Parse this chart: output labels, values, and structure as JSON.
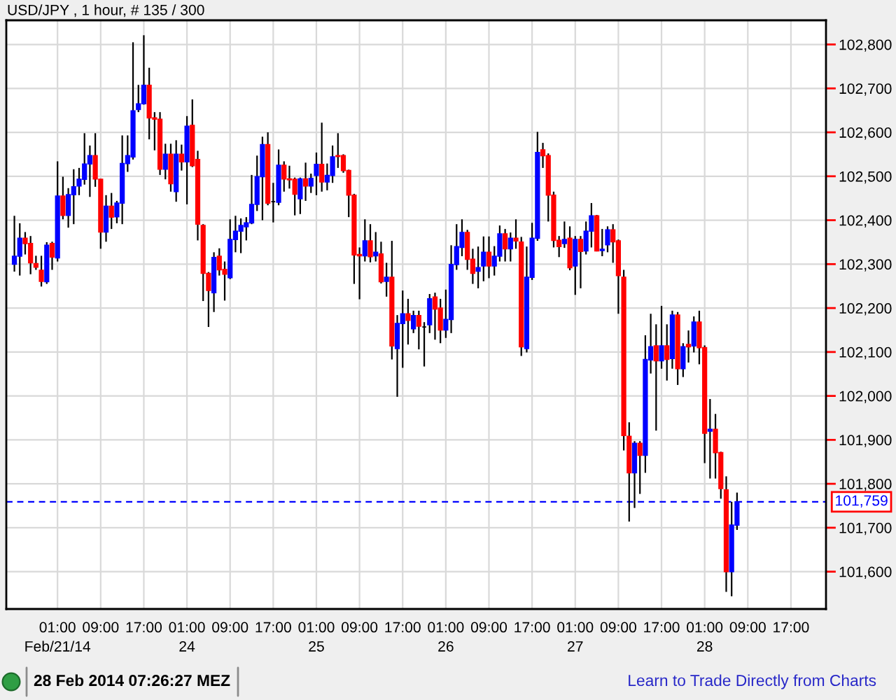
{
  "chart_data": {
    "type": "candlestick",
    "title": "USD/JPY , 1 hour, # 135 / 300",
    "categories": [
      null,
      null,
      null,
      null,
      null,
      null,
      null,
      null,
      null,
      "01:00\nFeb/21/14",
      null,
      null,
      null,
      null,
      null,
      null,
      null,
      "09:00",
      null,
      null,
      null,
      null,
      null,
      null,
      null,
      "17:00",
      null,
      null,
      null,
      null,
      null,
      null,
      null,
      "01:00\n24",
      null,
      null,
      null,
      null,
      null,
      null,
      null,
      "09:00",
      null,
      null,
      null,
      null,
      null,
      null,
      null,
      "17:00",
      null,
      null,
      null,
      null,
      null,
      null,
      null,
      "01:00\n25",
      null,
      null,
      null,
      null,
      null,
      null,
      null,
      "09:00",
      null,
      null,
      null,
      null,
      null,
      null,
      null,
      "17:00",
      null,
      null,
      null,
      null,
      null,
      null,
      null,
      "01:00\n26",
      null,
      null,
      null,
      null,
      null,
      null,
      null,
      "09:00",
      null,
      null,
      null,
      null,
      null,
      null,
      null,
      "17:00",
      null,
      null,
      null,
      null,
      null,
      null,
      null,
      "01:00\n27",
      null,
      null,
      null,
      null,
      null,
      null,
      null,
      "09:00",
      null,
      null,
      null,
      null,
      null,
      null,
      null,
      "17:00",
      null,
      null,
      null,
      null,
      null,
      null,
      null,
      "01:00\n28",
      null,
      null,
      null,
      null,
      null,
      null,
      null,
      "09:00",
      null,
      null,
      null,
      null,
      null,
      null,
      null,
      "17:00",
      null,
      null,
      null,
      null,
      null,
      null
    ],
    "ohlc": [
      null,
      [
        102300,
        102410,
        102283,
        102318
      ],
      [
        102318,
        102393,
        102274,
        102359
      ],
      [
        102359,
        102373,
        102322,
        102347
      ],
      [
        102347,
        102364,
        102277,
        102303
      ],
      [
        102301,
        102319,
        102287,
        102293
      ],
      [
        102286,
        102319,
        102249,
        102261
      ],
      [
        102260,
        102350,
        102255,
        102343
      ],
      [
        102347,
        102351,
        102287,
        102316
      ],
      [
        102314,
        102534,
        102306,
        102455
      ],
      [
        102455,
        102499,
        102402,
        102411
      ],
      [
        102411,
        102473,
        102383,
        102458
      ],
      [
        102458,
        102516,
        102391,
        102476
      ],
      [
        102478,
        102519,
        102457,
        102493
      ],
      [
        102493,
        102598,
        102481,
        102528
      ],
      [
        102528,
        102570,
        102453,
        102547
      ],
      [
        102547,
        102598,
        102476,
        102494
      ],
      [
        102493,
        102494,
        102335,
        102373
      ],
      [
        102373,
        102457,
        102351,
        102432
      ],
      [
        102432,
        102462,
        102380,
        102407
      ],
      [
        102408,
        102444,
        102393,
        102439
      ],
      [
        102439,
        102593,
        102391,
        102529
      ],
      [
        102529,
        102593,
        102510,
        102547
      ],
      [
        102544,
        102805,
        102538,
        102649
      ],
      [
        102652,
        102708,
        102646,
        102665
      ],
      [
        102665,
        102821,
        102663,
        102707
      ],
      [
        102707,
        102747,
        102584,
        102633
      ],
      [
        102633,
        102646,
        102559,
        102630
      ],
      [
        102630,
        102646,
        102503,
        102516
      ],
      [
        102516,
        102574,
        102493,
        102550
      ],
      [
        102550,
        102574,
        102465,
        102483
      ],
      [
        102465,
        102582,
        102442,
        102550
      ],
      [
        102550,
        102572,
        102513,
        102533
      ],
      [
        102533,
        102637,
        102436,
        102614
      ],
      [
        102616,
        102675,
        102521,
        102524
      ],
      [
        102538,
        102558,
        102354,
        102391
      ],
      [
        102388,
        102391,
        102216,
        102279
      ],
      [
        102279,
        102282,
        102157,
        102240
      ],
      [
        102235,
        102327,
        102191,
        102315
      ],
      [
        102318,
        102336,
        102274,
        102287
      ],
      [
        102288,
        102306,
        102217,
        102277
      ],
      [
        102269,
        102402,
        102266,
        102356
      ],
      [
        102356,
        102410,
        102327,
        102375
      ],
      [
        102375,
        102404,
        102325,
        102388
      ],
      [
        102385,
        102407,
        102354,
        102394
      ],
      [
        102394,
        102503,
        102391,
        102436
      ],
      [
        102436,
        102547,
        102421,
        102499
      ],
      [
        102499,
        102590,
        102400,
        102572
      ],
      [
        102572,
        102600,
        102434,
        102439
      ],
      [
        102442,
        102485,
        102395,
        102442
      ],
      [
        102441,
        102561,
        102434,
        102525
      ],
      [
        102525,
        102534,
        102465,
        102494
      ],
      [
        102494,
        102524,
        102472,
        102492
      ],
      [
        102493,
        102497,
        102411,
        102459
      ],
      [
        102449,
        102497,
        102414,
        102494
      ],
      [
        102494,
        102531,
        102444,
        102478
      ],
      [
        102478,
        102506,
        102462,
        102495
      ],
      [
        102502,
        102554,
        102457,
        102527
      ],
      [
        102527,
        102622,
        102465,
        102487
      ],
      [
        102487,
        102529,
        102468,
        102502
      ],
      [
        102502,
        102570,
        102485,
        102544
      ],
      [
        102547,
        102598,
        102519,
        102545
      ],
      [
        102547,
        102550,
        102508,
        102513
      ],
      [
        102513,
        102515,
        102407,
        102457
      ],
      [
        102457,
        102460,
        102255,
        102321
      ],
      [
        102322,
        102338,
        102220,
        102319
      ],
      [
        102319,
        102402,
        102306,
        102353
      ],
      [
        102353,
        102391,
        102304,
        102317
      ],
      [
        102319,
        102373,
        102306,
        102327
      ],
      [
        102323,
        102351,
        102256,
        102260
      ],
      [
        102261,
        102303,
        102226,
        102270
      ],
      [
        102270,
        102353,
        102083,
        102114
      ],
      [
        102108,
        102184,
        101998,
        102165
      ],
      [
        102165,
        102240,
        102064,
        102187
      ],
      [
        102187,
        102221,
        102117,
        102172
      ],
      [
        102153,
        102194,
        102143,
        102183
      ],
      [
        102183,
        102194,
        102106,
        102159
      ],
      [
        102157,
        102168,
        102067,
        102157
      ],
      [
        102162,
        102232,
        102143,
        102221
      ],
      [
        102225,
        102235,
        102128,
        102198
      ],
      [
        102200,
        102221,
        102120,
        102150
      ],
      [
        102150,
        102242,
        102132,
        102174
      ],
      [
        102174,
        102343,
        102143,
        102299
      ],
      [
        102299,
        102391,
        102287,
        102340
      ],
      [
        102338,
        102402,
        102318,
        102372
      ],
      [
        102372,
        102378,
        102287,
        102311
      ],
      [
        102311,
        102335,
        102255,
        102279
      ],
      [
        102284,
        102340,
        102245,
        102292
      ],
      [
        102296,
        102363,
        102261,
        102327
      ],
      [
        102327,
        102363,
        102268,
        102296
      ],
      [
        102296,
        102341,
        102274,
        102318
      ],
      [
        102318,
        102388,
        102306,
        102369
      ],
      [
        102369,
        102380,
        102306,
        102335
      ],
      [
        102335,
        102372,
        102306,
        102359
      ],
      [
        102359,
        102402,
        102335,
        102353
      ],
      [
        102350,
        102362,
        102091,
        102112
      ],
      [
        102108,
        102340,
        102099,
        102270
      ],
      [
        102270,
        102394,
        102264,
        102359
      ],
      [
        102359,
        102601,
        102353,
        102554
      ],
      [
        102560,
        102576,
        102519,
        102547
      ],
      [
        102547,
        102552,
        102397,
        102457
      ],
      [
        102457,
        102465,
        102338,
        102354
      ],
      [
        102354,
        102364,
        102316,
        102340
      ],
      [
        102347,
        102397,
        102337,
        102356
      ],
      [
        102359,
        102386,
        102286,
        102292
      ],
      [
        102296,
        102364,
        102230,
        102356
      ],
      [
        102356,
        102364,
        102245,
        102329
      ],
      [
        102330,
        102397,
        102322,
        102375
      ],
      [
        102375,
        102439,
        102338,
        102410
      ],
      [
        102410,
        102412,
        102329,
        102330
      ],
      [
        102331,
        102380,
        102318,
        102334
      ],
      [
        102344,
        102386,
        102327,
        102378
      ],
      [
        102378,
        102391,
        102303,
        102351
      ],
      [
        102353,
        102356,
        102187,
        102274
      ],
      [
        102270,
        102287,
        101876,
        101910
      ],
      [
        101908,
        101940,
        101714,
        101825
      ],
      [
        101825,
        101897,
        101745,
        101892
      ],
      [
        101892,
        101897,
        101777,
        101865
      ],
      [
        101865,
        102138,
        101825,
        102083
      ],
      [
        102082,
        102187,
        102051,
        102112
      ],
      [
        102114,
        102163,
        101921,
        102080
      ],
      [
        102080,
        102205,
        102062,
        102114
      ],
      [
        102114,
        102163,
        102035,
        102083
      ],
      [
        102085,
        102194,
        102062,
        102184
      ],
      [
        102184,
        102191,
        102025,
        102062
      ],
      [
        102062,
        102120,
        102043,
        102112
      ],
      [
        102117,
        102149,
        102076,
        102112
      ],
      [
        102114,
        102181,
        102099,
        102168
      ],
      [
        102168,
        102194,
        102072,
        102110
      ],
      [
        102110,
        102115,
        101847,
        101915
      ],
      [
        101920,
        101993,
        101812,
        101924
      ],
      [
        101924,
        101959,
        101812,
        101871
      ],
      [
        101871,
        101873,
        101766,
        101789
      ],
      [
        101786,
        101817,
        101554,
        101600
      ],
      [
        101600,
        101759,
        101544,
        101706
      ],
      [
        101706,
        101780,
        101695,
        101759
      ],
      null,
      null,
      null,
      null,
      null,
      null,
      null,
      null,
      null,
      null,
      null,
      null,
      null,
      null,
      null,
      null
    ],
    "colors": [
      null,
      "#0000ff",
      "#0000ff",
      "#ff0000",
      "#ff0000",
      "#ff0000",
      "#ff0000",
      "#0000ff",
      "#ff0000",
      "#0000ff",
      "#ff0000",
      "#0000ff",
      "#0000ff",
      "#0000ff",
      "#0000ff",
      "#0000ff",
      "#ff0000",
      "#ff0000",
      "#0000ff",
      "#ff0000",
      "#0000ff",
      "#0000ff",
      "#0000ff",
      "#0000ff",
      "#0000ff",
      "#0000ff",
      "#ff0000",
      "#ff0000",
      "#ff0000",
      "#0000ff",
      "#ff0000",
      "#0000ff",
      "#ff0000",
      "#0000ff",
      "#ff0000",
      "#ff0000",
      "#ff0000",
      "#ff0000",
      "#0000ff",
      "#ff0000",
      "#ff0000",
      "#0000ff",
      "#0000ff",
      "#0000ff",
      "#0000ff",
      "#0000ff",
      "#0000ff",
      "#0000ff",
      "#ff0000",
      "#000000",
      "#0000ff",
      "#ff0000",
      "#ff0000",
      "#ff0000",
      "#0000ff",
      "#ff0000",
      "#0000ff",
      "#0000ff",
      "#ff0000",
      "#0000ff",
      "#0000ff",
      "#ff0000",
      "#ff0000",
      "#ff0000",
      "#ff0000",
      "#ff0000",
      "#0000ff",
      "#ff0000",
      "#0000ff",
      "#ff0000",
      "#0000ff",
      "#ff0000",
      "#0000ff",
      "#0000ff",
      "#ff0000",
      "#0000ff",
      "#ff0000",
      "#000000",
      "#0000ff",
      "#ff0000",
      "#ff0000",
      "#0000ff",
      "#0000ff",
      "#0000ff",
      "#0000ff",
      "#ff0000",
      "#ff0000",
      "#0000ff",
      "#0000ff",
      "#ff0000",
      "#0000ff",
      "#0000ff",
      "#ff0000",
      "#0000ff",
      "#ff0000",
      "#ff0000",
      "#0000ff",
      "#0000ff",
      "#0000ff",
      "#ff0000",
      "#ff0000",
      "#ff0000",
      "#ff0000",
      "#0000ff",
      "#ff0000",
      "#0000ff",
      "#ff0000",
      "#0000ff",
      "#0000ff",
      "#ff0000",
      "#0000ff",
      "#0000ff",
      "#ff0000",
      "#ff0000",
      "#ff0000",
      "#ff0000",
      "#0000ff",
      "#ff0000",
      "#0000ff",
      "#0000ff",
      "#ff0000",
      "#0000ff",
      "#ff0000",
      "#0000ff",
      "#ff0000",
      "#0000ff",
      "#ff0000",
      "#0000ff",
      "#ff0000",
      "#ff0000",
      "#0000ff",
      "#ff0000",
      "#ff0000",
      "#ff0000",
      "#0000ff",
      "#0000ff",
      null,
      null,
      null,
      null,
      null,
      null,
      null,
      null,
      null,
      null,
      null,
      null,
      null,
      null,
      null,
      null
    ],
    "ylim": [
      101515,
      102855
    ],
    "yticks": [
      {
        "value": 101600,
        "label": "101,600"
      },
      {
        "value": 101700,
        "label": "101,700"
      },
      {
        "value": 101800,
        "label": "101,800"
      },
      {
        "value": 101900,
        "label": "101,900"
      },
      {
        "value": 102000,
        "label": "102,000"
      },
      {
        "value": 102100,
        "label": "102,100"
      },
      {
        "value": 102200,
        "label": "102,200"
      },
      {
        "value": 102300,
        "label": "102,300"
      },
      {
        "value": 102400,
        "label": "102,400"
      },
      {
        "value": 102500,
        "label": "102,500"
      },
      {
        "value": 102600,
        "label": "102,600"
      },
      {
        "value": 102700,
        "label": "102,700"
      },
      {
        "value": 102800,
        "label": "102,800"
      }
    ],
    "grid": true,
    "ref_lines": [
      {
        "axis": "y",
        "value": 101759,
        "label": "101,759",
        "color": "#0000ff",
        "line_style": "dashed"
      }
    ],
    "annotations": [
      "28 Feb 2014 07:26:27 MEZ",
      "Learn to Trade Directly from Charts"
    ]
  }
}
